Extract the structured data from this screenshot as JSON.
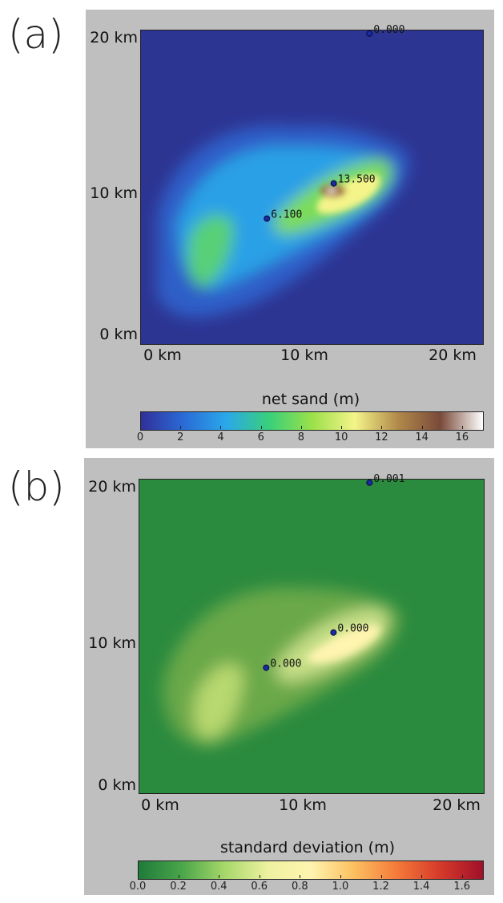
{
  "panels": [
    {
      "id": "a",
      "label": "(a)",
      "colorbar": {
        "title": "net sand (m)",
        "ticks": [
          "0",
          "2",
          "4",
          "6",
          "8",
          "10",
          "12",
          "14",
          "16"
        ],
        "tick_values": [
          0,
          2,
          4,
          6,
          8,
          10,
          12,
          14,
          16
        ],
        "range": [
          0,
          17
        ],
        "colormap": [
          "#30309a",
          "#2a6bd6",
          "#2aa8ea",
          "#38d07a",
          "#9be04a",
          "#f4f48a",
          "#b28a4a",
          "#7a4a3a",
          "#ffffff"
        ]
      },
      "axes": {
        "y_ticks": [
          "20 km",
          "10 km",
          "0 km"
        ],
        "x_ticks": [
          "0 km",
          "10 km",
          "20 km"
        ]
      },
      "points": [
        {
          "value_label": "0.000"
        },
        {
          "value_label": "13.500"
        },
        {
          "value_label": "6.100"
        }
      ]
    },
    {
      "id": "b",
      "label": "(b)",
      "colorbar": {
        "title": "standard deviation (m)",
        "ticks": [
          "0.0",
          "0.2",
          "0.4",
          "0.6",
          "0.8",
          "1.0",
          "1.2",
          "1.4",
          "1.6"
        ],
        "tick_values": [
          0,
          0.2,
          0.4,
          0.6,
          0.8,
          1.0,
          1.2,
          1.4,
          1.6
        ],
        "range": [
          0,
          1.7
        ],
        "colormap": [
          "#1e7b3a",
          "#4aa54a",
          "#a6d86a",
          "#eef2a0",
          "#fff4b0",
          "#fcc060",
          "#f47a3a",
          "#d63a2a",
          "#a0102a"
        ]
      },
      "axes": {
        "y_ticks": [
          "20 km",
          "10 km",
          "0 km"
        ],
        "x_ticks": [
          "0 km",
          "10 km",
          "20 km"
        ]
      },
      "points": [
        {
          "value_label": "0.001"
        },
        {
          "value_label": "0.000"
        },
        {
          "value_label": "0.000"
        }
      ]
    }
  ],
  "chart_data": [
    {
      "type": "heatmap",
      "title": "",
      "colorbar_label": "net sand (m)",
      "xlabel": "",
      "ylabel": "",
      "x_ticks": [
        "0 km",
        "10 km",
        "20 km"
      ],
      "y_ticks": [
        "0 km",
        "10 km",
        "20 km"
      ],
      "xlim_km": [
        0,
        22
      ],
      "ylim_km": [
        0,
        20.5
      ],
      "zlim": [
        0,
        17
      ],
      "colorbar_ticks": [
        0,
        2,
        4,
        6,
        8,
        10,
        12,
        14,
        16
      ],
      "annotated_points": [
        {
          "x_km": 14.7,
          "y_km": 20.3,
          "value": 0.0
        },
        {
          "x_km": 12.4,
          "y_km": 10.5,
          "value": 13.5
        },
        {
          "x_km": 8.1,
          "y_km": 8.2,
          "value": 6.1
        }
      ]
    },
    {
      "type": "heatmap",
      "title": "",
      "colorbar_label": "standard deviation (m)",
      "xlabel": "",
      "ylabel": "",
      "x_ticks": [
        "0 km",
        "10 km",
        "20 km"
      ],
      "y_ticks": [
        "0 km",
        "10 km",
        "20 km"
      ],
      "xlim_km": [
        0,
        22
      ],
      "ylim_km": [
        0,
        20.5
      ],
      "zlim": [
        0,
        1.7
      ],
      "colorbar_ticks": [
        0.0,
        0.2,
        0.4,
        0.6,
        0.8,
        1.0,
        1.2,
        1.4,
        1.6
      ],
      "annotated_points": [
        {
          "x_km": 14.7,
          "y_km": 20.3,
          "value": 0.001
        },
        {
          "x_km": 12.4,
          "y_km": 10.5,
          "value": 0.0
        },
        {
          "x_km": 8.1,
          "y_km": 8.2,
          "value": 0.0
        }
      ]
    }
  ]
}
